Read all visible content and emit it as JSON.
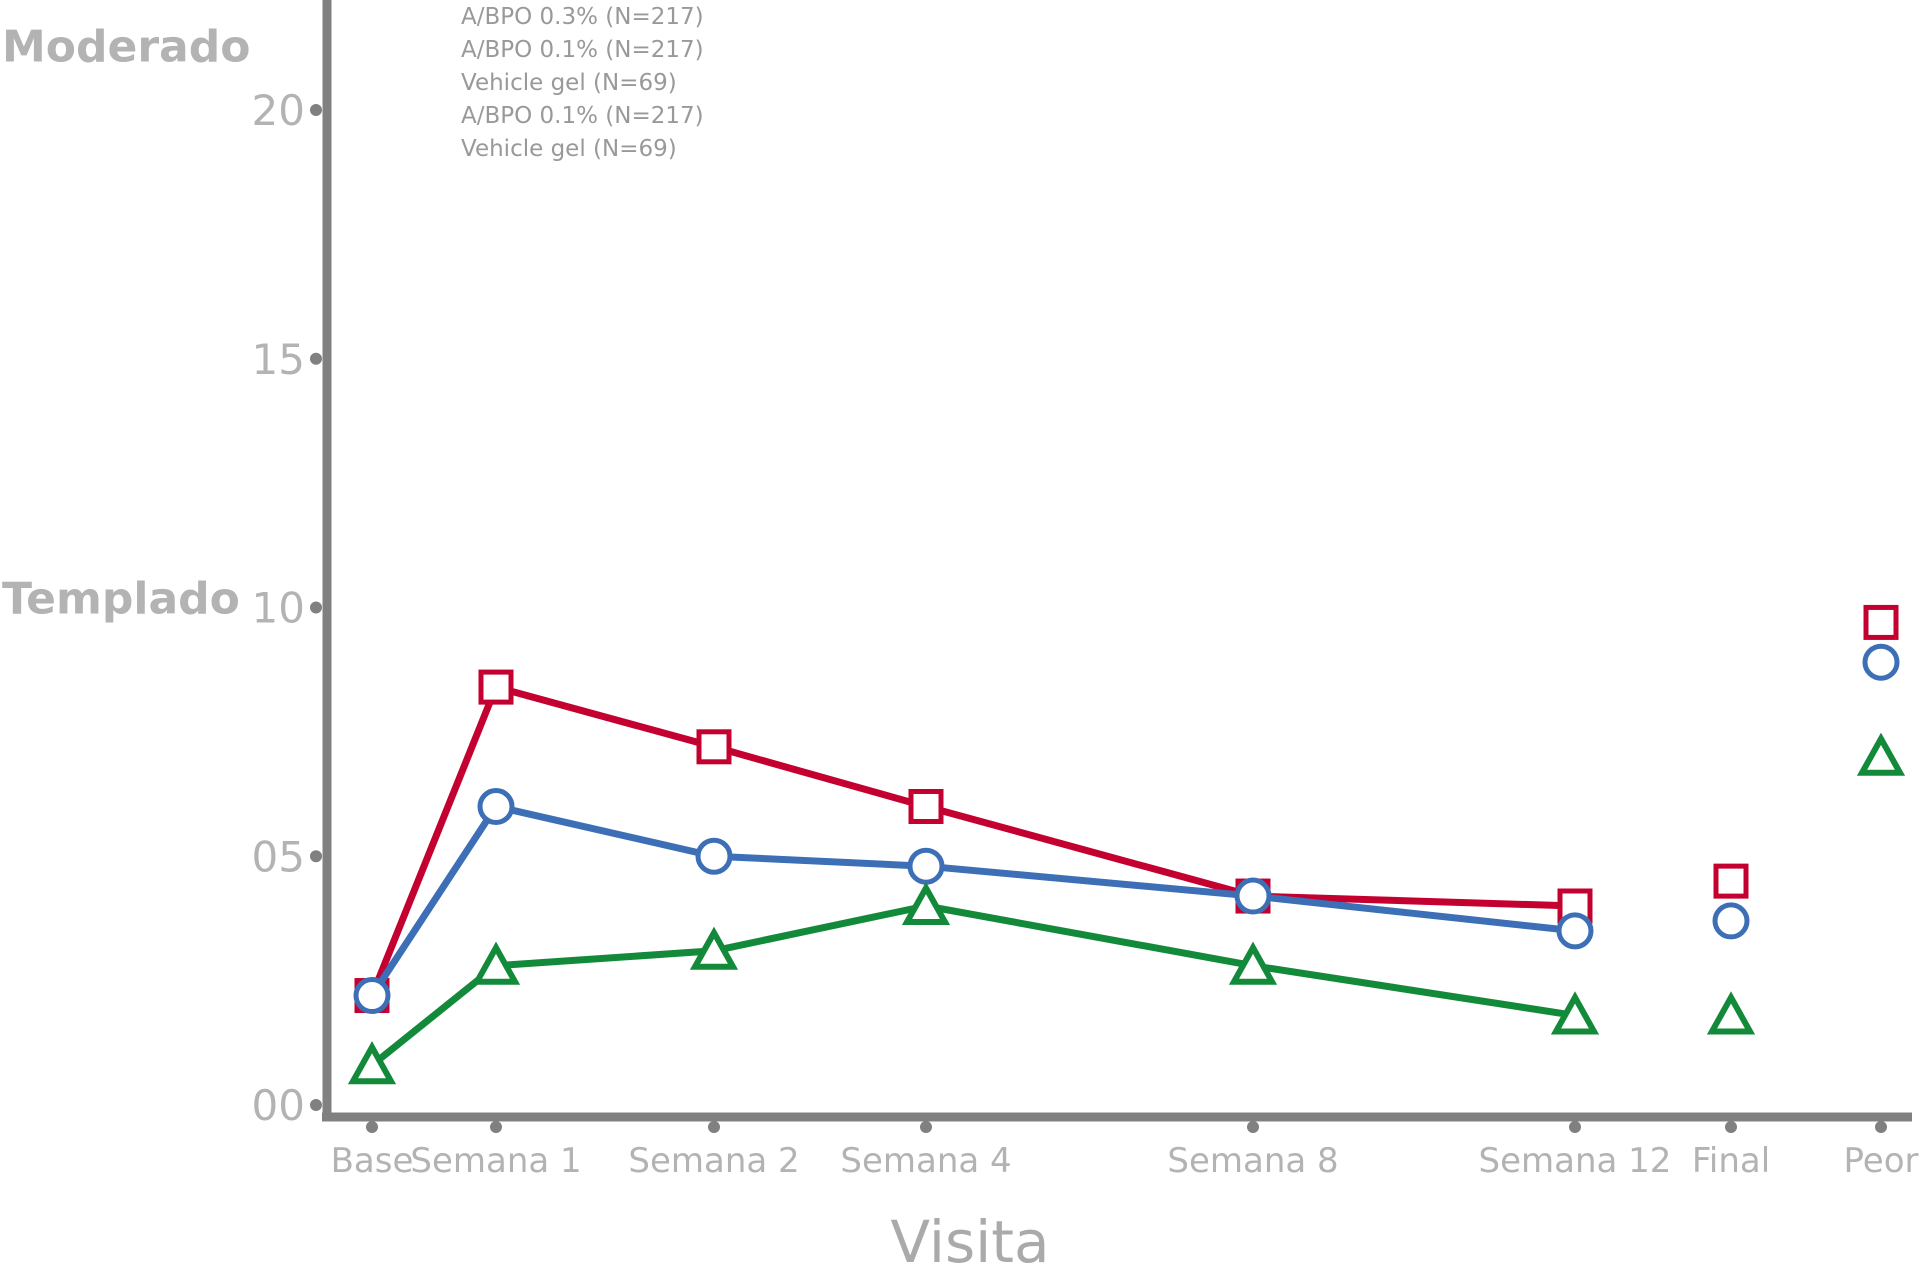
{
  "chart_data": {
    "type": "line",
    "categories": [
      "Base",
      "Semana 1",
      "Semana 2",
      "Semana 4",
      "Semana 8",
      "Semana 12",
      "Final",
      "Peor"
    ],
    "connected_count": 6,
    "xlabel": "Visita",
    "ylabel": "",
    "ylim": [
      0,
      20
    ],
    "yticks": [
      "00",
      "05",
      "10",
      "15",
      "20"
    ],
    "severity_labels": [
      {
        "text": "Moderado",
        "y": 21.3
      },
      {
        "text": "Templado",
        "y": 10.2
      }
    ],
    "legend_entries": [
      "A/BPO 0.3% (N=217)",
      "A/BPO 0.1% (N=217)",
      "Vehicle gel (N=69)",
      "A/BPO 0.1% (N=217)",
      "Vehicle gel (N=69)"
    ],
    "series": [
      {
        "marker": "square",
        "color": "#c3002f",
        "values": [
          2.2,
          8.4,
          7.2,
          6.0,
          4.2,
          4.0,
          4.5,
          9.7
        ]
      },
      {
        "marker": "circle",
        "color": "#3d6fb6",
        "values": [
          2.2,
          6.0,
          5.0,
          4.8,
          4.2,
          3.5,
          3.7,
          8.9
        ]
      },
      {
        "marker": "triangle",
        "color": "#138a3a",
        "values": [
          0.8,
          2.8,
          3.1,
          4.0,
          2.8,
          1.8,
          1.8,
          7.0
        ]
      }
    ],
    "axis_color": "#808080"
  }
}
